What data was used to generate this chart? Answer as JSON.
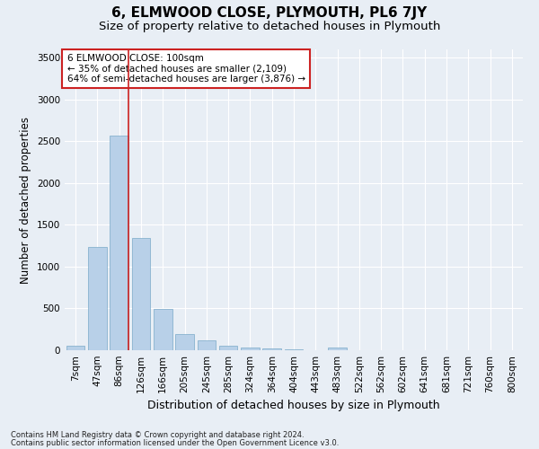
{
  "title": "6, ELMWOOD CLOSE, PLYMOUTH, PL6 7JY",
  "subtitle": "Size of property relative to detached houses in Plymouth",
  "xlabel": "Distribution of detached houses by size in Plymouth",
  "ylabel": "Number of detached properties",
  "footnote1": "Contains HM Land Registry data © Crown copyright and database right 2024.",
  "footnote2": "Contains public sector information licensed under the Open Government Licence v3.0.",
  "bar_labels": [
    "7sqm",
    "47sqm",
    "86sqm",
    "126sqm",
    "166sqm",
    "205sqm",
    "245sqm",
    "285sqm",
    "324sqm",
    "364sqm",
    "404sqm",
    "443sqm",
    "483sqm",
    "522sqm",
    "562sqm",
    "602sqm",
    "641sqm",
    "681sqm",
    "721sqm",
    "760sqm",
    "800sqm"
  ],
  "bar_values": [
    50,
    1240,
    2570,
    1340,
    490,
    190,
    115,
    55,
    30,
    20,
    10,
    5,
    30,
    0,
    0,
    0,
    0,
    0,
    0,
    0,
    0
  ],
  "bar_color": "#b8d0e8",
  "bar_edge_color": "#7aaac8",
  "vline_color": "#cc2222",
  "vline_x_index": 2.43,
  "annotation_text": "6 ELMWOOD CLOSE: 100sqm\n← 35% of detached houses are smaller (2,109)\n64% of semi-detached houses are larger (3,876) →",
  "annotation_box_color": "white",
  "annotation_box_edge_color": "#cc2222",
  "ylim": [
    0,
    3600
  ],
  "yticks": [
    0,
    500,
    1000,
    1500,
    2000,
    2500,
    3000,
    3500
  ],
  "fig_bg_color": "#e8eef5",
  "plot_bg_color": "#e8eef5",
  "title_fontsize": 11,
  "subtitle_fontsize": 9.5,
  "xlabel_fontsize": 9,
  "ylabel_fontsize": 8.5,
  "tick_fontsize": 7.5,
  "annot_fontsize": 7.5,
  "footnote_fontsize": 6
}
